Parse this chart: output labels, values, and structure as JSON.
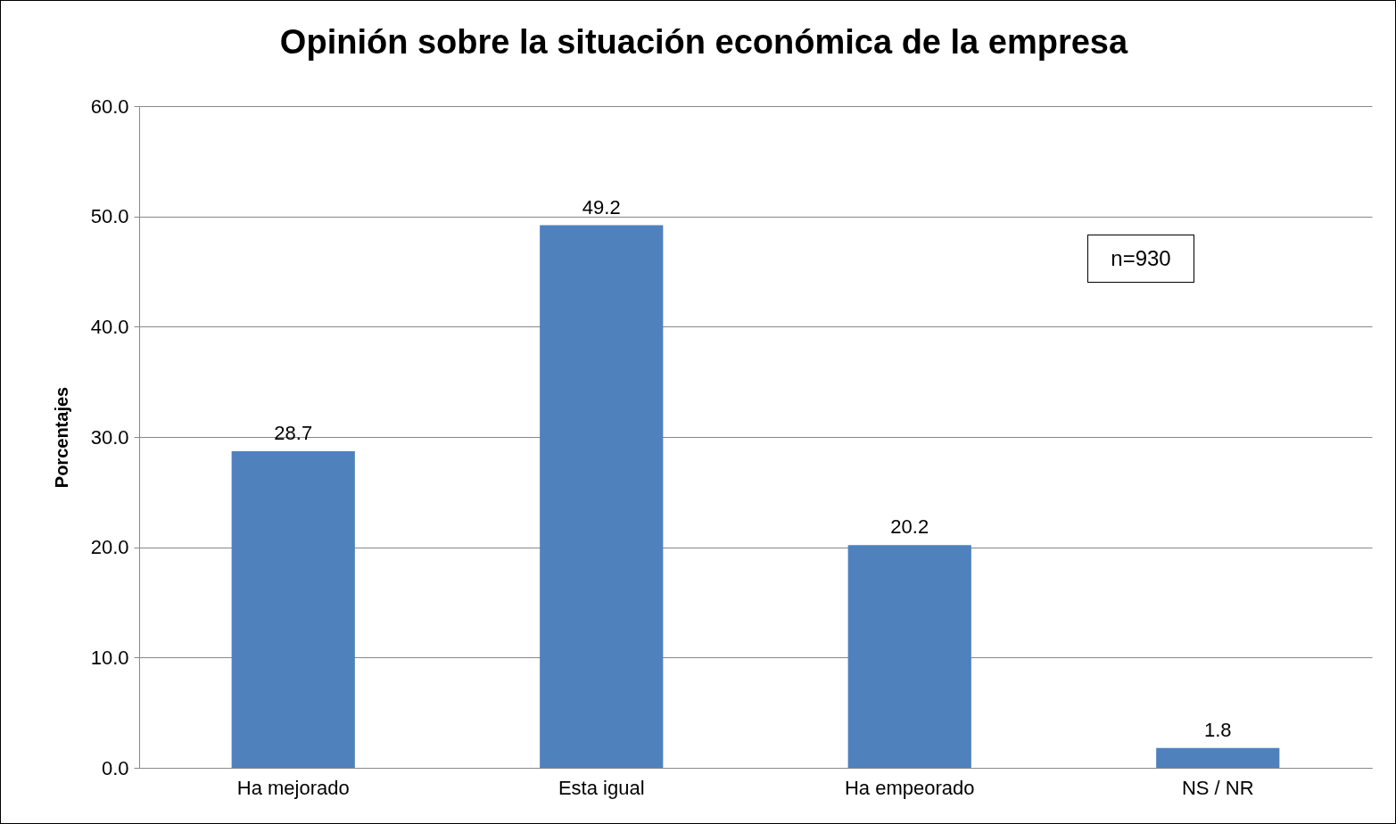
{
  "chart_data": {
    "type": "bar",
    "title": "Opinión sobre la situación económica de la empresa",
    "ylabel": "Porcentajes",
    "categories": [
      "Ha mejorado",
      "Esta igual",
      "Ha empeorado",
      "NS / NR"
    ],
    "values": [
      28.7,
      49.2,
      20.2,
      1.8
    ],
    "color": "#4f81bd",
    "ylim": [
      0,
      60
    ],
    "yticks": [
      {
        "value": 0,
        "label": "0.0"
      },
      {
        "value": 10,
        "label": "10.0"
      },
      {
        "value": 20,
        "label": "20.0"
      },
      {
        "value": 30,
        "label": "30.0"
      },
      {
        "value": 40,
        "label": "40.0"
      },
      {
        "value": 50,
        "label": "50.0"
      },
      {
        "value": 60,
        "label": "60.0"
      }
    ],
    "grid": "y",
    "data_labels": true,
    "annotations": [
      "n=930"
    ]
  }
}
